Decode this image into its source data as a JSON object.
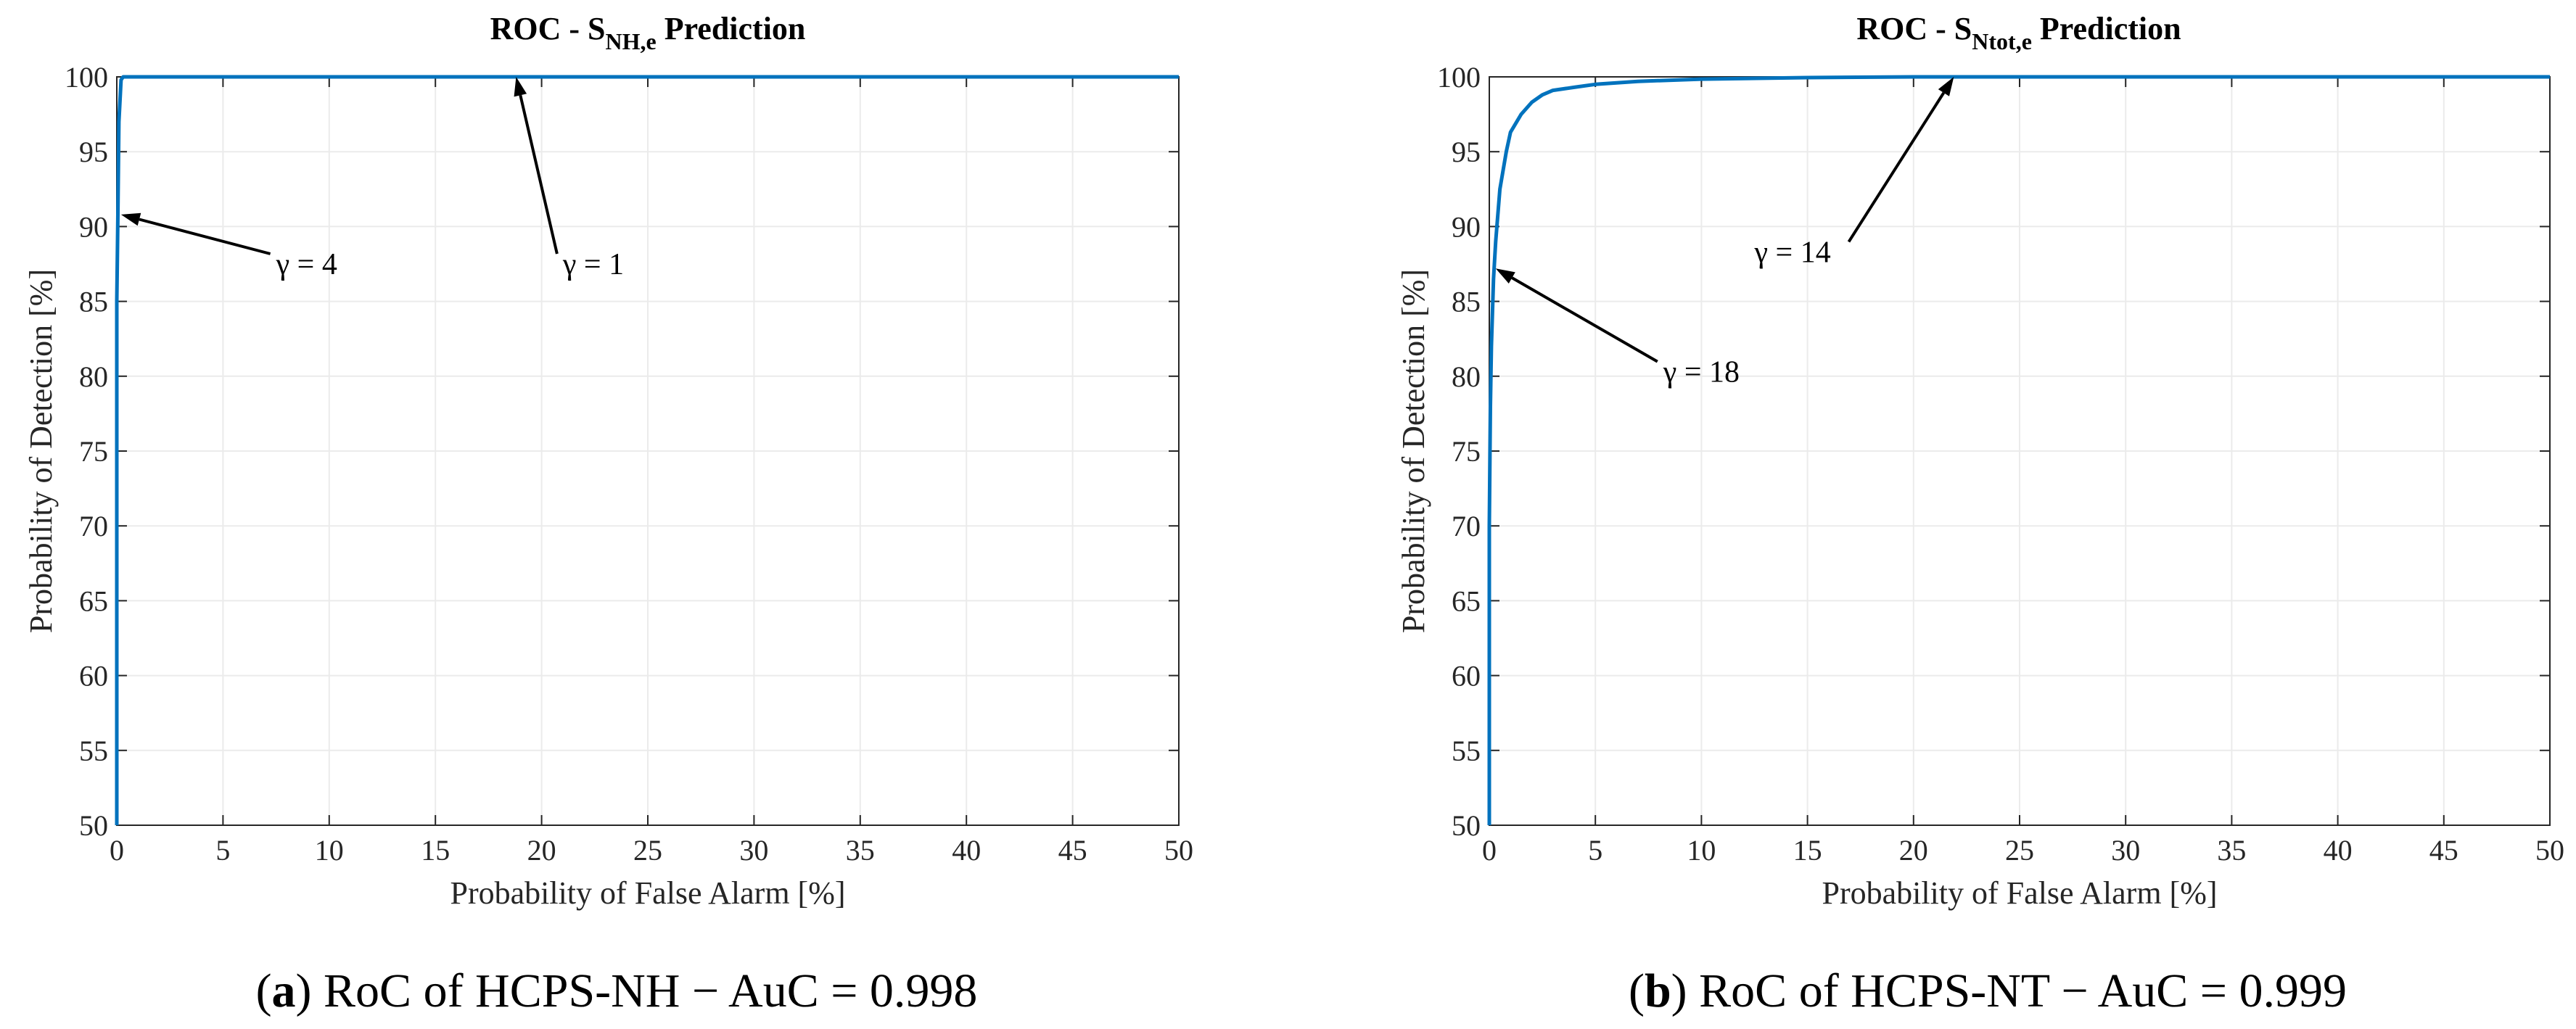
{
  "colors": {
    "series": "#0072bd",
    "grid": "#ebebeb",
    "axis": "#262626"
  },
  "chart_data": [
    {
      "type": "line",
      "title": {
        "main": "ROC - S",
        "subscript": "NH,e",
        "tail": " Prediction"
      },
      "xlabel": "Probability of False Alarm [%]",
      "ylabel": "Probability of Detection [%]",
      "xlim": [
        0,
        50
      ],
      "ylim": [
        50,
        100
      ],
      "xticks": [
        0,
        5,
        10,
        15,
        20,
        25,
        30,
        35,
        40,
        45,
        50
      ],
      "yticks": [
        50,
        55,
        60,
        65,
        70,
        75,
        80,
        85,
        90,
        95,
        100
      ],
      "grid": true,
      "series": [
        {
          "name": "ROC",
          "x": [
            0,
            0,
            0.05,
            0.1,
            0.2,
            0.3,
            50
          ],
          "y": [
            50,
            85,
            90.8,
            97,
            99.8,
            100,
            100
          ]
        }
      ],
      "annotations": [
        {
          "text": "γ = 4",
          "point": [
            0.2,
            90.8
          ],
          "text_at": [
            7.5,
            87.5
          ]
        },
        {
          "text": "γ = 1",
          "point": [
            18.8,
            100
          ],
          "text_at": [
            21,
            87.5
          ]
        }
      ],
      "caption": {
        "label": "a",
        "text": "RoC of HCPS-NH − AuC = 0.998"
      }
    },
    {
      "type": "line",
      "title": {
        "main": "ROC - S",
        "subscript": "Ntot,e",
        "tail": " Prediction"
      },
      "xlabel": "Probability of False Alarm [%]",
      "ylabel": "Probability of Detection [%]",
      "xlim": [
        0,
        50
      ],
      "ylim": [
        50,
        100
      ],
      "xticks": [
        0,
        5,
        10,
        15,
        20,
        25,
        30,
        35,
        40,
        45,
        50
      ],
      "yticks": [
        50,
        55,
        60,
        65,
        70,
        75,
        80,
        85,
        90,
        95,
        100
      ],
      "grid": true,
      "series": [
        {
          "name": "ROC",
          "x": [
            0,
            0,
            0.05,
            0.1,
            0.2,
            0.3,
            0.5,
            0.8,
            1.0,
            1.5,
            2.0,
            2.5,
            3,
            4,
            5,
            7,
            10,
            15,
            20,
            25,
            50
          ],
          "y": [
            50,
            70,
            78,
            82,
            86.5,
            89,
            92.5,
            95,
            96.3,
            97.5,
            98.3,
            98.8,
            99.1,
            99.3,
            99.5,
            99.7,
            99.85,
            99.95,
            100,
            100,
            100
          ]
        }
      ],
      "annotations": [
        {
          "text": "γ = 18",
          "point": [
            0.3,
            87.2
          ],
          "text_at": [
            8.2,
            80.3
          ]
        },
        {
          "text": "γ = 14",
          "point": [
            21.9,
            100
          ],
          "text_at": [
            12.5,
            88.3
          ]
        }
      ],
      "caption": {
        "label": "b",
        "text": "RoC of HCPS-NT − AuC = 0.999"
      }
    }
  ]
}
